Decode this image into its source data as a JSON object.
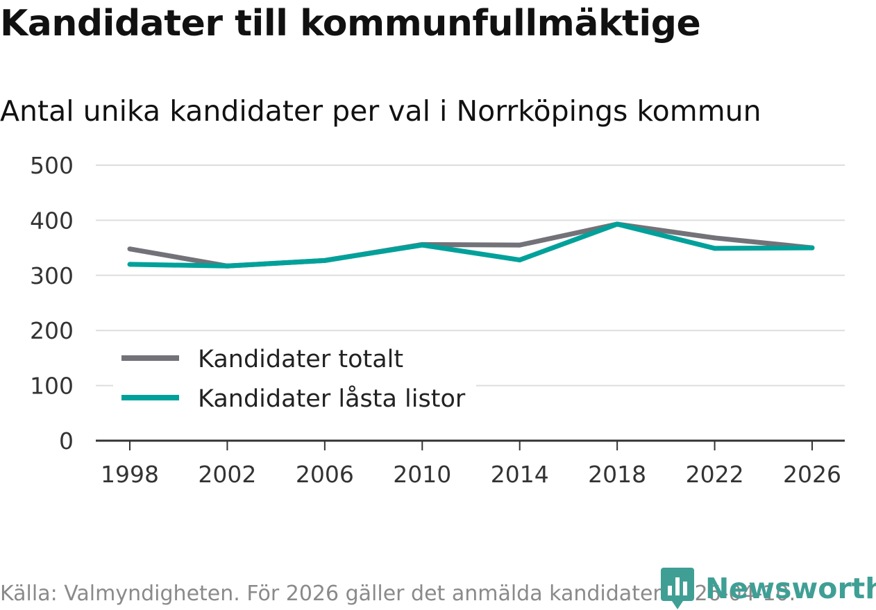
{
  "title": "Kandidater till kommunfullmäktige",
  "subtitle": "Antal unika kandidater per val i Norrköpings kommun",
  "source": "Källa: Valmyndigheten. För 2026 gäller det anmälda kandidater 2026-04-10.",
  "brand": "Newsworthy",
  "colors": {
    "total": "#737278",
    "locked": "#00a19a",
    "brand": "#3f9f95",
    "grid": "#dddddd"
  },
  "chart_data": {
    "type": "line",
    "title": "Kandidater till kommunfullmäktige",
    "subtitle": "Antal unika kandidater per val i Norrköpings kommun",
    "xlabel": "",
    "ylabel": "",
    "x": [
      1998,
      2002,
      2006,
      2010,
      2014,
      2018,
      2022,
      2026
    ],
    "x_tick_labels": [
      "1998",
      "2002",
      "2006",
      "2010",
      "2014",
      "2018",
      "2022",
      "2026"
    ],
    "y_ticks": [
      0,
      100,
      200,
      300,
      400,
      500
    ],
    "y_tick_labels": [
      "0",
      "100",
      "200",
      "300",
      "400",
      "500"
    ],
    "ylim": [
      0,
      500
    ],
    "grid": true,
    "legend_position": "bottom-left",
    "series": [
      {
        "key": "total",
        "name": "Kandidater totalt",
        "color": "#737278",
        "values": [
          348,
          317,
          327,
          356,
          355,
          393,
          368,
          350
        ]
      },
      {
        "key": "locked",
        "name": "Kandidater låsta listor",
        "color": "#00a19a",
        "values": [
          320,
          317,
          327,
          355,
          328,
          393,
          349,
          350
        ]
      }
    ]
  }
}
